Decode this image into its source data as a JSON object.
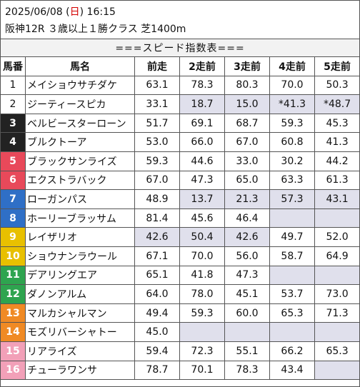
{
  "header": {
    "date": "2025/06/08",
    "day_open": " (",
    "day": "日",
    "day_close": ") 16:15",
    "race": "阪神12R ３歳以上１勝クラス 芝1400m"
  },
  "title": "===スピード指数表===",
  "columns": [
    "馬番",
    "馬名",
    "前走",
    "2走前",
    "3走前",
    "4走前",
    "5走前"
  ],
  "colors": {
    "weekday_red": "#d40000",
    "cell_gray": "#e0e0ec",
    "gate_1": "#ffffff",
    "gate_2": "#ffffff",
    "gate_3": "#222222",
    "gate_4": "#222222",
    "gate_5": "#e8495a",
    "gate_6": "#e8495a",
    "gate_7": "#2f6fc6",
    "gate_8": "#2f6fc6",
    "gate_9": "#e8c000",
    "gate_10": "#e8c000",
    "gate_11": "#2ea44f",
    "gate_12": "#2ea44f",
    "gate_13": "#f08a24",
    "gate_14": "#f08a24",
    "gate_15": "#f2a0b8",
    "gate_16": "#f2a0b8"
  },
  "rows": [
    {
      "no": "1",
      "name": "メイショウサチダケ",
      "v": [
        "63.1",
        "78.3",
        "80.3",
        "70.0",
        "50.3"
      ],
      "gray": [
        false,
        false,
        false,
        false,
        false
      ],
      "bg": "#ffffff",
      "fg": "#111111"
    },
    {
      "no": "2",
      "name": "ジーティースピカ",
      "v": [
        "33.1",
        "18.7",
        "15.0",
        "*41.3",
        "*48.7"
      ],
      "gray": [
        false,
        true,
        true,
        true,
        true
      ],
      "bg": "#ffffff",
      "fg": "#111111"
    },
    {
      "no": "3",
      "name": "ベルビースターローン",
      "v": [
        "51.7",
        "69.1",
        "68.7",
        "59.3",
        "45.3"
      ],
      "gray": [
        false,
        false,
        false,
        false,
        false
      ],
      "bg": "#222222",
      "fg": "#ffffff"
    },
    {
      "no": "4",
      "name": "ブルクトーア",
      "v": [
        "53.0",
        "66.0",
        "67.0",
        "60.8",
        "41.3"
      ],
      "gray": [
        false,
        false,
        false,
        false,
        false
      ],
      "bg": "#222222",
      "fg": "#ffffff"
    },
    {
      "no": "5",
      "name": "ブラックサンライズ",
      "v": [
        "59.3",
        "44.6",
        "33.0",
        "30.2",
        "44.2"
      ],
      "gray": [
        false,
        false,
        false,
        false,
        false
      ],
      "bg": "#e8495a",
      "fg": "#ffffff"
    },
    {
      "no": "6",
      "name": "エクストラバック",
      "v": [
        "67.0",
        "47.3",
        "65.0",
        "63.3",
        "61.3"
      ],
      "gray": [
        false,
        false,
        false,
        false,
        false
      ],
      "bg": "#e8495a",
      "fg": "#ffffff"
    },
    {
      "no": "7",
      "name": "ローガンパス",
      "v": [
        "48.9",
        "13.7",
        "21.3",
        "57.3",
        "43.1"
      ],
      "gray": [
        false,
        true,
        true,
        true,
        true
      ],
      "bg": "#2f6fc6",
      "fg": "#ffffff"
    },
    {
      "no": "8",
      "name": "ホーリーブラッサム",
      "v": [
        "81.4",
        "45.6",
        "46.4",
        "",
        ""
      ],
      "gray": [
        false,
        false,
        false,
        true,
        true
      ],
      "bg": "#2f6fc6",
      "fg": "#ffffff"
    },
    {
      "no": "9",
      "name": "レイザリオ",
      "v": [
        "42.6",
        "50.4",
        "42.6",
        "49.7",
        "52.0"
      ],
      "gray": [
        true,
        true,
        true,
        false,
        false
      ],
      "bg": "#e8c000",
      "fg": "#ffffff"
    },
    {
      "no": "10",
      "name": "ショウナンラウール",
      "v": [
        "67.1",
        "70.0",
        "56.0",
        "58.7",
        "64.9"
      ],
      "gray": [
        false,
        false,
        false,
        false,
        false
      ],
      "bg": "#e8c000",
      "fg": "#ffffff"
    },
    {
      "no": "11",
      "name": "デアリングエア",
      "v": [
        "65.1",
        "41.8",
        "47.3",
        "",
        ""
      ],
      "gray": [
        false,
        false,
        false,
        true,
        true
      ],
      "bg": "#2ea44f",
      "fg": "#ffffff"
    },
    {
      "no": "12",
      "name": "ダノンアルム",
      "v": [
        "64.0",
        "78.0",
        "45.1",
        "53.7",
        "73.0"
      ],
      "gray": [
        false,
        false,
        false,
        false,
        false
      ],
      "bg": "#2ea44f",
      "fg": "#ffffff"
    },
    {
      "no": "13",
      "name": "マルカシャルマン",
      "v": [
        "49.4",
        "59.3",
        "60.0",
        "65.3",
        "71.3"
      ],
      "gray": [
        false,
        false,
        false,
        false,
        false
      ],
      "bg": "#f08a24",
      "fg": "#ffffff"
    },
    {
      "no": "14",
      "name": "モズリバーシャトー",
      "v": [
        "45.0",
        "",
        "",
        "",
        ""
      ],
      "gray": [
        false,
        true,
        true,
        true,
        true
      ],
      "bg": "#f08a24",
      "fg": "#ffffff"
    },
    {
      "no": "15",
      "name": "リアライズ",
      "v": [
        "59.4",
        "72.3",
        "55.1",
        "66.2",
        "65.3"
      ],
      "gray": [
        false,
        false,
        false,
        false,
        false
      ],
      "bg": "#f2a0b8",
      "fg": "#ffffff"
    },
    {
      "no": "16",
      "name": "チューラワンサ",
      "v": [
        "78.7",
        "70.1",
        "78.3",
        "43.4",
        ""
      ],
      "gray": [
        false,
        false,
        false,
        false,
        true
      ],
      "bg": "#f2a0b8",
      "fg": "#ffffff"
    }
  ]
}
